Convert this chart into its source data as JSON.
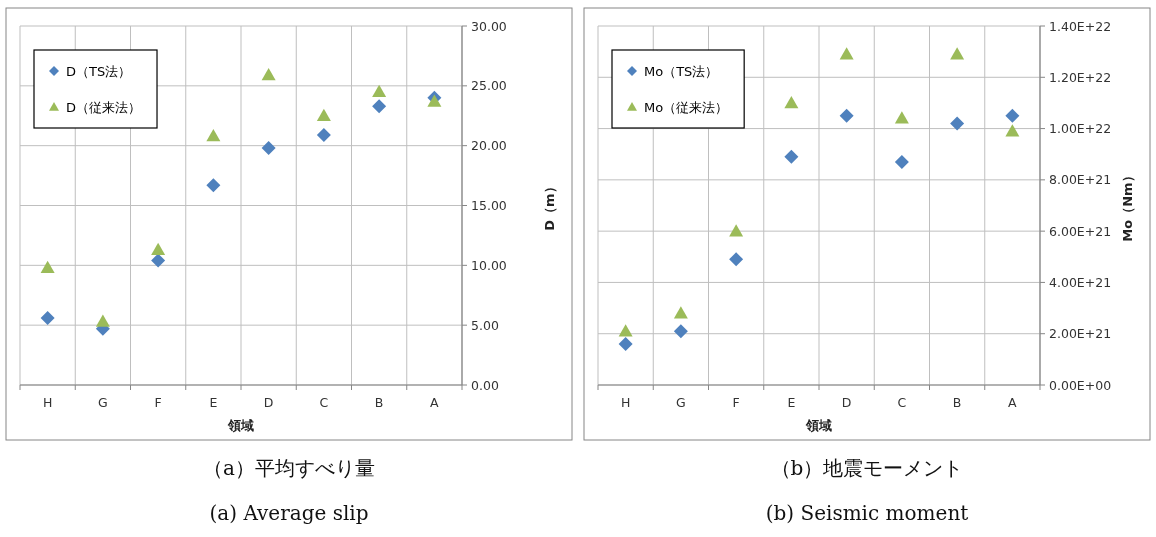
{
  "chart_data": [
    {
      "type": "scatter",
      "title": "（a）平均すべり量",
      "subtitle": "(a) Average slip",
      "xlabel": "領域",
      "ylabel": "D（m）",
      "categories": [
        "H",
        "G",
        "F",
        "E",
        "D",
        "C",
        "B",
        "A"
      ],
      "series": [
        {
          "name": "D（TS法）",
          "color": "#4f81bd",
          "marker": "diamond",
          "values": [
            5.6,
            4.7,
            10.4,
            16.7,
            19.8,
            20.9,
            23.3,
            24.0
          ]
        },
        {
          "name": "D（従来法）",
          "color": "#9bbb59",
          "marker": "triangle",
          "values": [
            9.8,
            5.3,
            11.3,
            20.8,
            25.9,
            22.5,
            24.5,
            23.7
          ]
        }
      ],
      "ylim": [
        0,
        30
      ],
      "yticks": [
        {
          "value": 0,
          "label": "0.00"
        },
        {
          "value": 5,
          "label": "5.00"
        },
        {
          "value": 10,
          "label": "10.00"
        },
        {
          "value": 15,
          "label": "15.00"
        },
        {
          "value": 20,
          "label": "20.00"
        },
        {
          "value": 25,
          "label": "25.00"
        },
        {
          "value": 30,
          "label": "30.00"
        }
      ],
      "grid": true,
      "legend": "top left"
    },
    {
      "type": "scatter",
      "title": "（b）地震モーメント",
      "subtitle": "(b) Seismic moment",
      "xlabel": "領域",
      "ylabel": "Mo（Nm）",
      "categories": [
        "H",
        "G",
        "F",
        "E",
        "D",
        "C",
        "B",
        "A"
      ],
      "series": [
        {
          "name": "Mo（TS法）",
          "color": "#4f81bd",
          "marker": "diamond",
          "values": [
            1.6e+21,
            2.1e+21,
            4.9e+21,
            8.9e+21,
            1.05e+22,
            8.7e+21,
            1.02e+22,
            1.05e+22
          ]
        },
        {
          "name": "Mo（従来法）",
          "color": "#9bbb59",
          "marker": "triangle",
          "values": [
            2.1e+21,
            2.8e+21,
            6e+21,
            1.1e+22,
            1.29e+22,
            1.04e+22,
            1.29e+22,
            9.9e+21
          ]
        }
      ],
      "ylim": [
        0,
        1.4e+22
      ],
      "yticks": [
        {
          "value": 0,
          "label": "0.00E+00"
        },
        {
          "value": 2e+21,
          "label": "2.00E+21"
        },
        {
          "value": 4e+21,
          "label": "4.00E+21"
        },
        {
          "value": 6e+21,
          "label": "6.00E+21"
        },
        {
          "value": 8e+21,
          "label": "8.00E+21"
        },
        {
          "value": 1e+22,
          "label": "1.00E+22"
        },
        {
          "value": 1.2e+22,
          "label": "1.20E+22"
        },
        {
          "value": 1.4e+22,
          "label": "1.40E+22"
        }
      ],
      "grid": true,
      "legend": "top left"
    }
  ]
}
